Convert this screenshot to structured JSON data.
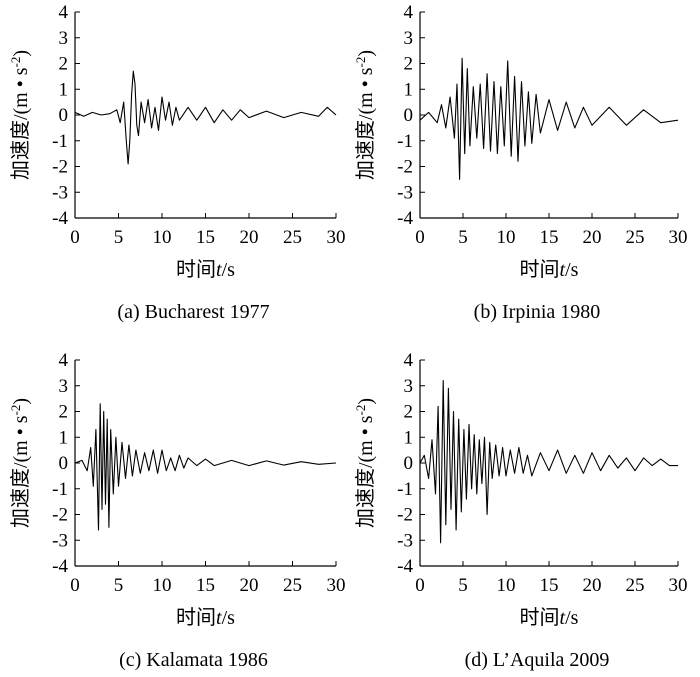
{
  "chart_data": [
    {
      "type": "line",
      "caption": "(a) Bucharest 1977",
      "xlabel": "时间t/s",
      "ylabel": "加速度/(m • s-2)",
      "xlim": [
        0,
        30
      ],
      "ylim": [
        -4,
        4
      ],
      "xticks": [
        0,
        5,
        10,
        15,
        20,
        25,
        30
      ],
      "yticks": [
        -4,
        -3,
        -2,
        -1,
        0,
        1,
        2,
        3,
        4
      ],
      "series": [
        {
          "x": [
            0,
            1,
            2,
            3,
            4,
            4.8,
            5.2,
            5.6,
            5.9,
            6.1,
            6.3,
            6.5,
            6.7,
            6.9,
            7.1,
            7.3,
            7.6,
            8.0,
            8.4,
            8.8,
            9.2,
            9.6,
            10.0,
            10.4,
            10.8,
            11.2,
            11.6,
            12.0,
            13,
            14,
            15,
            16,
            17,
            18,
            19,
            20,
            22,
            24,
            26,
            28,
            29,
            30
          ],
          "y": [
            0.1,
            -0.05,
            0.1,
            0.0,
            0.05,
            0.2,
            -0.3,
            0.5,
            -1.0,
            -1.9,
            -1.0,
            0.8,
            1.7,
            1.2,
            -0.4,
            -0.8,
            0.5,
            -0.3,
            0.6,
            -0.5,
            0.3,
            -0.6,
            0.7,
            -0.2,
            0.5,
            -0.4,
            0.3,
            -0.2,
            0.3,
            -0.2,
            0.3,
            -0.3,
            0.2,
            -0.2,
            0.2,
            -0.1,
            0.15,
            -0.1,
            0.1,
            -0.05,
            0.3,
            0.0
          ]
        }
      ]
    },
    {
      "type": "line",
      "caption": "(b) Irpinia 1980",
      "xlabel": "时间t/s",
      "ylabel": "加速度/(m • s-2)",
      "xlim": [
        0,
        30
      ],
      "ylim": [
        -4,
        4
      ],
      "xticks": [
        0,
        5,
        10,
        15,
        20,
        25,
        30
      ],
      "yticks": [
        -4,
        -3,
        -2,
        -1,
        0,
        1,
        2,
        3,
        4
      ],
      "series": [
        {
          "x": [
            0,
            1,
            2,
            2.5,
            3,
            3.5,
            4,
            4.3,
            4.6,
            4.9,
            5.2,
            5.5,
            5.8,
            6.2,
            6.6,
            7.0,
            7.4,
            7.8,
            8.2,
            8.6,
            9.0,
            9.4,
            9.8,
            10.2,
            10.6,
            11.0,
            11.4,
            11.8,
            12.2,
            12.6,
            13.0,
            13.5,
            14,
            15,
            16,
            17,
            18,
            19,
            20,
            22,
            24,
            26,
            28,
            30
          ],
          "y": [
            -0.2,
            0.1,
            -0.3,
            0.4,
            -0.5,
            0.7,
            -0.9,
            1.2,
            -2.5,
            2.2,
            -1.5,
            1.8,
            -1.2,
            1.1,
            -0.9,
            1.2,
            -1.3,
            1.6,
            -1.4,
            1.3,
            -1.5,
            1.1,
            -1.2,
            2.1,
            -1.6,
            1.5,
            -1.8,
            1.3,
            -1.2,
            0.9,
            -1.1,
            0.8,
            -0.7,
            0.6,
            -0.6,
            0.5,
            -0.5,
            0.3,
            -0.4,
            0.3,
            -0.4,
            0.2,
            -0.3,
            -0.2
          ]
        }
      ]
    },
    {
      "type": "line",
      "caption": "(c) Kalamata 1986",
      "xlabel": "时间t/s",
      "ylabel": "加速度/(m • s-2)",
      "xlim": [
        0,
        30
      ],
      "ylim": [
        -4,
        4
      ],
      "xticks": [
        0,
        5,
        10,
        15,
        20,
        25,
        30
      ],
      "yticks": [
        -4,
        -3,
        -2,
        -1,
        0,
        1,
        2,
        3,
        4
      ],
      "series": [
        {
          "x": [
            0,
            0.8,
            1.4,
            1.8,
            2.1,
            2.4,
            2.7,
            2.9,
            3.1,
            3.3,
            3.5,
            3.7,
            3.9,
            4.1,
            4.4,
            4.7,
            5.0,
            5.4,
            5.8,
            6.2,
            6.6,
            7.0,
            7.5,
            8.0,
            8.5,
            9.0,
            9.5,
            10.0,
            10.5,
            11.0,
            11.5,
            12.0,
            12.5,
            13,
            14,
            15,
            16,
            18,
            20,
            22,
            24,
            26,
            28,
            30
          ],
          "y": [
            0.0,
            0.1,
            -0.3,
            0.6,
            -0.9,
            1.3,
            -2.6,
            2.3,
            -1.8,
            2.0,
            -1.6,
            1.7,
            -2.5,
            1.3,
            -1.2,
            1.0,
            -0.9,
            0.8,
            -0.6,
            0.7,
            -0.5,
            0.5,
            -0.4,
            0.4,
            -0.3,
            0.5,
            -0.4,
            0.5,
            -0.3,
            0.2,
            -0.3,
            0.3,
            -0.2,
            0.2,
            -0.1,
            0.15,
            -0.1,
            0.1,
            -0.1,
            0.08,
            -0.08,
            0.05,
            -0.05,
            0.0
          ]
        }
      ]
    },
    {
      "type": "line",
      "caption": "(d) L’Aquila 2009",
      "xlabel": "时间t/s",
      "ylabel": "加速度/(m • s-2)",
      "xlim": [
        0,
        30
      ],
      "ylim": [
        -4,
        4
      ],
      "xticks": [
        0,
        5,
        10,
        15,
        20,
        25,
        30
      ],
      "yticks": [
        -4,
        -3,
        -2,
        -1,
        0,
        1,
        2,
        3,
        4
      ],
      "series": [
        {
          "x": [
            0,
            0.5,
            1.0,
            1.4,
            1.8,
            2.1,
            2.4,
            2.7,
            3.0,
            3.3,
            3.6,
            3.9,
            4.2,
            4.5,
            4.8,
            5.1,
            5.4,
            5.7,
            6.0,
            6.3,
            6.6,
            6.9,
            7.2,
            7.5,
            7.8,
            8.1,
            8.4,
            8.8,
            9.2,
            9.6,
            10.0,
            10.5,
            11.0,
            11.5,
            12.0,
            12.5,
            13.0,
            14.0,
            15.0,
            16,
            17,
            18,
            19,
            20,
            21,
            22,
            23,
            24,
            25,
            26,
            27,
            28,
            29,
            30
          ],
          "y": [
            0.0,
            0.3,
            -0.6,
            0.9,
            -1.2,
            2.2,
            -3.1,
            3.2,
            -2.4,
            2.9,
            -1.8,
            2.0,
            -2.6,
            1.7,
            -1.9,
            1.3,
            -1.4,
            1.5,
            -1.0,
            1.1,
            -1.2,
            0.9,
            -0.8,
            1.0,
            -2.0,
            0.8,
            -0.6,
            0.7,
            -0.5,
            0.6,
            -0.5,
            0.5,
            -0.4,
            0.6,
            -0.4,
            0.3,
            -0.5,
            0.4,
            -0.3,
            0.5,
            -0.4,
            0.3,
            -0.4,
            0.4,
            -0.3,
            0.3,
            -0.2,
            0.2,
            -0.3,
            0.2,
            -0.1,
            0.15,
            -0.1,
            -0.1
          ]
        }
      ]
    }
  ]
}
